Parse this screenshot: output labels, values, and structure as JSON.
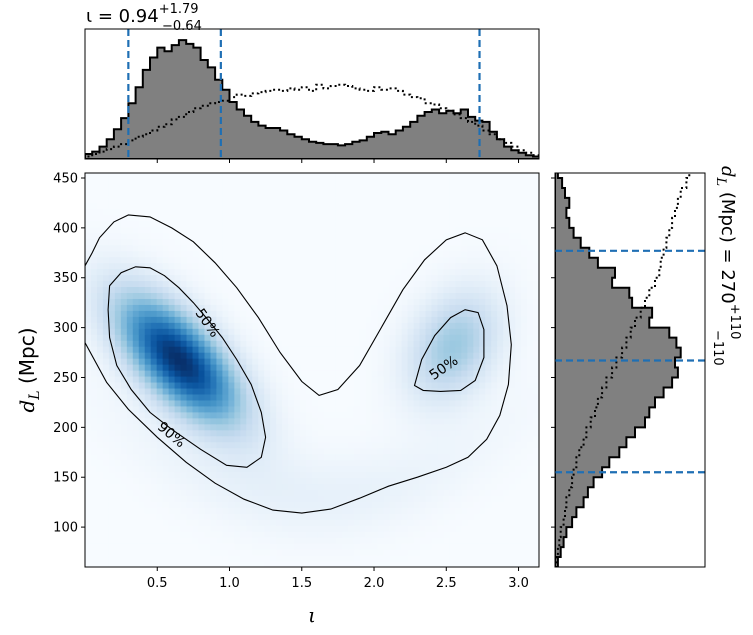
{
  "chart_data": [
    {
      "panel": "joint",
      "type": "heatmap",
      "xlabel": "ι",
      "ylabel": "d_L (Mpc)",
      "xlim": [
        0.0,
        3.1416
      ],
      "ylim": [
        60,
        455
      ],
      "xticks": [
        0.5,
        1.0,
        1.5,
        2.0,
        2.5,
        3.0
      ],
      "xtick_labels": [
        "0.5",
        "1.0",
        "1.5",
        "2.0",
        "2.5",
        "3.0"
      ],
      "yticks": [
        100,
        150,
        200,
        250,
        300,
        350,
        400,
        450
      ],
      "ytick_labels": [
        "100",
        "150",
        "200",
        "250",
        "300",
        "350",
        "400",
        "450"
      ],
      "colormap": [
        "#f7fbff",
        "#deebf7",
        "#c6dbef",
        "#9ecae1",
        "#6baed6",
        "#4292c6",
        "#2171b5",
        "#08519c",
        "#08306b"
      ],
      "density_peaks": [
        {
          "x": 0.65,
          "y": 268,
          "sx": 0.3,
          "sy": 45,
          "rho": -0.65,
          "amp": 1.0
        },
        {
          "x": 2.55,
          "y": 282,
          "sx": 0.22,
          "sy": 38,
          "rho": 0.3,
          "amp": 0.38
        }
      ],
      "contours": [
        {
          "label": "90%",
          "label_at": {
            "x": 0.6,
            "y": 193,
            "angle": 40
          },
          "points": [
            [
              0.0,
              362
            ],
            [
              0.05,
              375
            ],
            [
              0.1,
              390
            ],
            [
              0.2,
              406
            ],
            [
              0.3,
              413
            ],
            [
              0.45,
              411
            ],
            [
              0.6,
              400
            ],
            [
              0.75,
              386
            ],
            [
              0.9,
              365
            ],
            [
              1.05,
              340
            ],
            [
              1.2,
              310
            ],
            [
              1.35,
              275
            ],
            [
              1.5,
              246
            ],
            [
              1.62,
              232
            ],
            [
              1.75,
              238
            ],
            [
              1.9,
              262
            ],
            [
              2.05,
              300
            ],
            [
              2.2,
              338
            ],
            [
              2.35,
              368
            ],
            [
              2.5,
              388
            ],
            [
              2.63,
              395
            ],
            [
              2.75,
              388
            ],
            [
              2.85,
              362
            ],
            [
              2.92,
              322
            ],
            [
              2.95,
              283
            ],
            [
              2.93,
              243
            ],
            [
              2.87,
              212
            ],
            [
              2.78,
              188
            ],
            [
              2.65,
              170
            ],
            [
              2.5,
              160
            ],
            [
              2.3,
              150
            ],
            [
              2.1,
              141
            ],
            [
              1.9,
              129
            ],
            [
              1.7,
              118
            ],
            [
              1.5,
              114
            ],
            [
              1.3,
              117
            ],
            [
              1.1,
              128
            ],
            [
              0.9,
              144
            ],
            [
              0.7,
              165
            ],
            [
              0.5,
              190
            ],
            [
              0.3,
              218
            ],
            [
              0.15,
              245
            ],
            [
              0.0,
              285
            ]
          ]
        },
        {
          "label": "50%",
          "label_at": {
            "x": 0.85,
            "y": 305,
            "angle": 55
          },
          "points": [
            [
              0.17,
              342
            ],
            [
              0.25,
              355
            ],
            [
              0.35,
              361
            ],
            [
              0.45,
              360
            ],
            [
              0.55,
              352
            ],
            [
              0.65,
              340
            ],
            [
              0.75,
              325
            ],
            [
              0.85,
              308
            ],
            [
              0.95,
              290
            ],
            [
              1.05,
              268
            ],
            [
              1.15,
              243
            ],
            [
              1.22,
              215
            ],
            [
              1.25,
              190
            ],
            [
              1.22,
              170
            ],
            [
              1.12,
              160
            ],
            [
              0.98,
              162
            ],
            [
              0.8,
              178
            ],
            [
              0.6,
              198
            ],
            [
              0.45,
              215
            ],
            [
              0.32,
              238
            ],
            [
              0.22,
              262
            ],
            [
              0.17,
              290
            ],
            [
              0.16,
              318
            ]
          ]
        },
        {
          "label": "50%",
          "label_at": {
            "x": 2.48,
            "y": 260,
            "angle": -35
          },
          "points": [
            [
              2.28,
              242
            ],
            [
              2.33,
              268
            ],
            [
              2.42,
              292
            ],
            [
              2.53,
              310
            ],
            [
              2.63,
              318
            ],
            [
              2.72,
              315
            ],
            [
              2.76,
              298
            ],
            [
              2.76,
              270
            ],
            [
              2.7,
              247
            ],
            [
              2.6,
              237
            ],
            [
              2.46,
              236
            ],
            [
              2.34,
              237
            ]
          ]
        }
      ]
    },
    {
      "panel": "top-marginal",
      "type": "histogram",
      "title": "ι = 0.94+1.79−0.64",
      "title_parts": {
        "main": "ι = 0.94",
        "sup": "+1.79",
        "sub": "−0.64"
      },
      "xlim": [
        0.0,
        3.1416
      ],
      "ylim": [
        0,
        1.05
      ],
      "quantile_lines": [
        0.3,
        0.94,
        2.73
      ],
      "posterior": {
        "style": "filled-step",
        "bins_x": [
          0.0,
          0.05,
          0.1,
          0.15,
          0.2,
          0.25,
          0.3,
          0.35,
          0.4,
          0.45,
          0.5,
          0.55,
          0.6,
          0.65,
          0.7,
          0.75,
          0.8,
          0.85,
          0.9,
          0.95,
          1.0,
          1.05,
          1.1,
          1.15,
          1.2,
          1.25,
          1.3,
          1.35,
          1.4,
          1.45,
          1.5,
          1.55,
          1.6,
          1.65,
          1.7,
          1.75,
          1.8,
          1.85,
          1.9,
          1.95,
          2.0,
          2.05,
          2.1,
          2.15,
          2.2,
          2.25,
          2.3,
          2.35,
          2.4,
          2.45,
          2.5,
          2.55,
          2.6,
          2.65,
          2.7,
          2.75,
          2.8,
          2.85,
          2.9,
          2.95,
          3.0,
          3.05,
          3.1
        ],
        "values": [
          0.04,
          0.06,
          0.1,
          0.16,
          0.24,
          0.33,
          0.45,
          0.58,
          0.72,
          0.82,
          0.9,
          0.87,
          0.92,
          0.96,
          0.93,
          0.9,
          0.8,
          0.74,
          0.64,
          0.56,
          0.46,
          0.4,
          0.35,
          0.3,
          0.27,
          0.25,
          0.25,
          0.23,
          0.2,
          0.18,
          0.16,
          0.14,
          0.13,
          0.12,
          0.12,
          0.11,
          0.12,
          0.14,
          0.15,
          0.18,
          0.21,
          0.22,
          0.2,
          0.23,
          0.26,
          0.3,
          0.35,
          0.38,
          0.4,
          0.37,
          0.39,
          0.37,
          0.4,
          0.34,
          0.31,
          0.3,
          0.22,
          0.16,
          0.1,
          0.07,
          0.05,
          0.03,
          0.02
        ]
      },
      "prior": {
        "style": "dotted-step",
        "values": [
          0.02,
          0.04,
          0.06,
          0.08,
          0.1,
          0.12,
          0.15,
          0.18,
          0.2,
          0.23,
          0.26,
          0.28,
          0.32,
          0.34,
          0.38,
          0.41,
          0.43,
          0.45,
          0.46,
          0.47,
          0.5,
          0.52,
          0.51,
          0.53,
          0.54,
          0.55,
          0.56,
          0.55,
          0.57,
          0.56,
          0.58,
          0.55,
          0.6,
          0.57,
          0.59,
          0.6,
          0.59,
          0.57,
          0.56,
          0.55,
          0.58,
          0.56,
          0.57,
          0.55,
          0.52,
          0.5,
          0.49,
          0.45,
          0.44,
          0.41,
          0.39,
          0.36,
          0.33,
          0.3,
          0.27,
          0.23,
          0.2,
          0.16,
          0.13,
          0.1,
          0.07,
          0.05,
          0.03
        ]
      }
    },
    {
      "panel": "right-marginal",
      "type": "histogram",
      "title": "d_L (Mpc) = 270+110−110",
      "title_parts": {
        "main": "(Mpc) = 270",
        "sup": "+110",
        "sub": "−110"
      },
      "orientation": "horizontal",
      "ylim": [
        60,
        455
      ],
      "xlim": [
        0,
        1.05
      ],
      "quantile_lines": [
        155,
        267,
        377
      ],
      "posterior": {
        "style": "filled-step",
        "bins_y": [
          60,
          70,
          80,
          90,
          100,
          110,
          120,
          130,
          140,
          150,
          160,
          170,
          180,
          190,
          200,
          210,
          220,
          230,
          240,
          250,
          260,
          270,
          280,
          290,
          300,
          310,
          320,
          330,
          340,
          350,
          360,
          370,
          380,
          390,
          400,
          410,
          420,
          430,
          440,
          450
        ],
        "values": [
          0.02,
          0.04,
          0.06,
          0.08,
          0.12,
          0.15,
          0.2,
          0.23,
          0.27,
          0.33,
          0.38,
          0.45,
          0.5,
          0.56,
          0.63,
          0.66,
          0.7,
          0.76,
          0.82,
          0.86,
          0.84,
          0.88,
          0.85,
          0.8,
          0.66,
          0.68,
          0.54,
          0.52,
          0.4,
          0.42,
          0.3,
          0.24,
          0.18,
          0.13,
          0.1,
          0.08,
          0.1,
          0.07,
          0.05,
          0.02
        ]
      },
      "prior": {
        "style": "dotted-step",
        "values": [
          0.01,
          0.02,
          0.03,
          0.04,
          0.06,
          0.07,
          0.08,
          0.1,
          0.12,
          0.13,
          0.15,
          0.17,
          0.2,
          0.22,
          0.25,
          0.28,
          0.3,
          0.33,
          0.36,
          0.4,
          0.43,
          0.47,
          0.5,
          0.53,
          0.56,
          0.6,
          0.63,
          0.66,
          0.7,
          0.73,
          0.74,
          0.76,
          0.78,
          0.8,
          0.82,
          0.84,
          0.86,
          0.88,
          0.92,
          0.94
        ]
      }
    }
  ]
}
